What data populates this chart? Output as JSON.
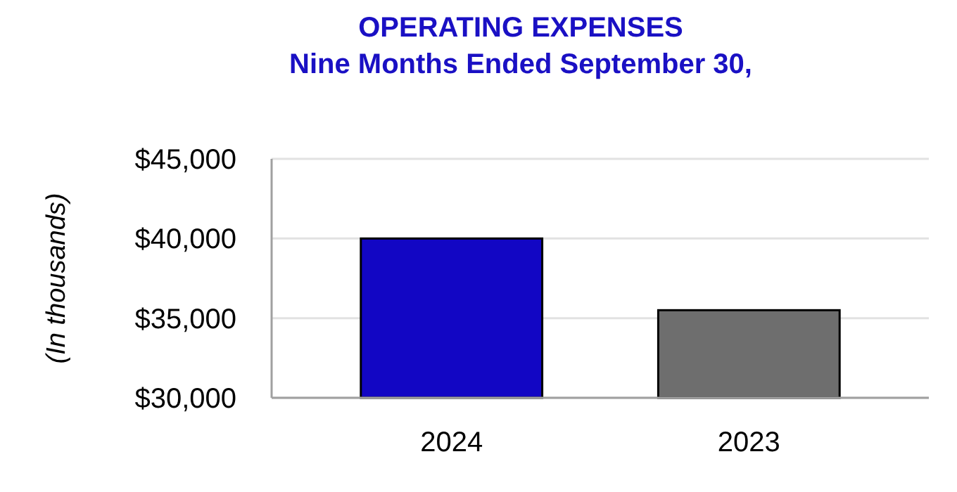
{
  "chart_data": {
    "type": "bar",
    "title": "OPERATING EXPENSES",
    "subtitle": "Nine Months Ended September 30,",
    "ylabel": "(In thousands)",
    "categories": [
      "2024",
      "2023"
    ],
    "values": [
      40000,
      35500
    ],
    "colors": [
      "#1206c4",
      "#6e6e6e"
    ],
    "ylim": [
      30000,
      45000
    ],
    "yticks": [
      {
        "value": 30000,
        "label": "$30,000"
      },
      {
        "value": 35000,
        "label": "$35,000"
      },
      {
        "value": 40000,
        "label": "$40,000"
      },
      {
        "value": 45000,
        "label": "$45,000"
      }
    ],
    "grid": "y"
  }
}
